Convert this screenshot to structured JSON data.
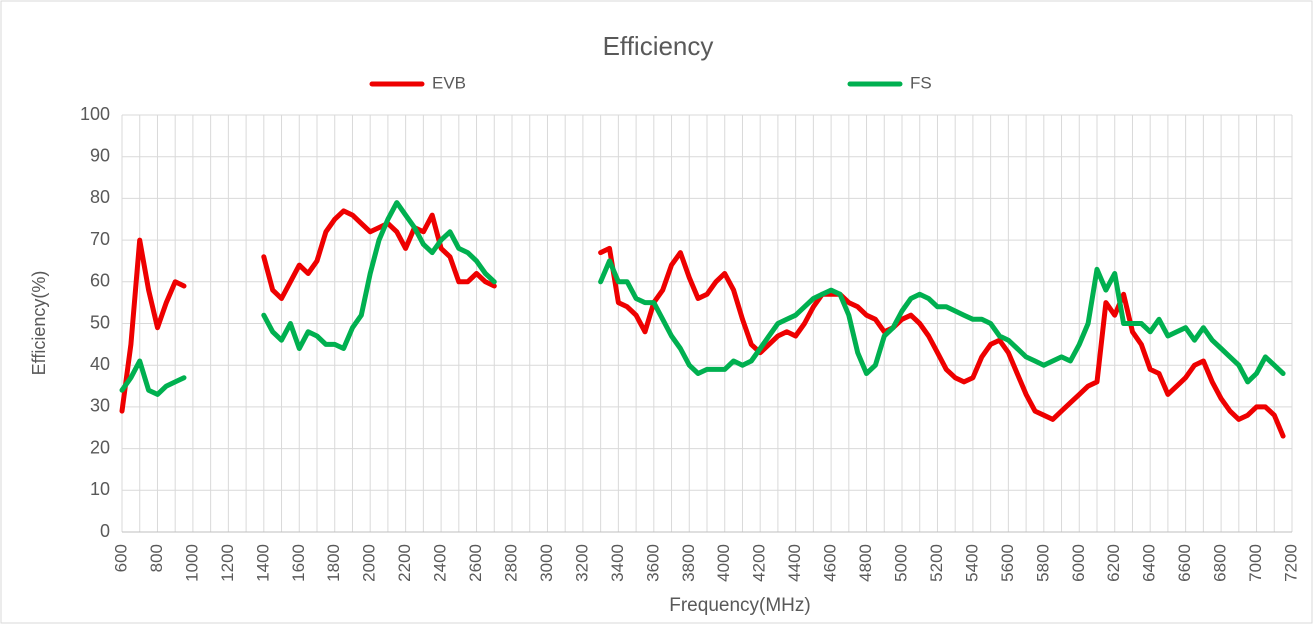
{
  "chart_data": {
    "type": "line",
    "title": "Efficiency",
    "x_label": "Frequency(MHz)",
    "y_label": "Efficiency(%)",
    "legend": "top",
    "grid": true,
    "xlim": [
      600,
      7200
    ],
    "xticks": [
      600,
      800,
      1000,
      1200,
      1400,
      1600,
      1800,
      2000,
      2200,
      2400,
      2600,
      2800,
      3000,
      3200,
      3400,
      3600,
      3800,
      4000,
      4200,
      4400,
      4600,
      4800,
      5000,
      5200,
      5400,
      5600,
      5800,
      6000,
      6200,
      6400,
      6600,
      6800,
      7000,
      7200
    ],
    "ylim": [
      0,
      100
    ],
    "yticks": [
      0,
      10,
      20,
      30,
      40,
      50,
      60,
      70,
      80,
      90,
      100
    ],
    "x": [
      600,
      650,
      700,
      750,
      800,
      850,
      900,
      950,
      1200,
      1400,
      1450,
      1500,
      1550,
      1600,
      1650,
      1700,
      1750,
      1800,
      1850,
      1900,
      1950,
      2000,
      2050,
      2100,
      2150,
      2200,
      2250,
      2300,
      2350,
      2400,
      2450,
      2500,
      2550,
      2600,
      2650,
      2700,
      3000,
      3300,
      3350,
      3400,
      3450,
      3500,
      3550,
      3600,
      3650,
      3700,
      3750,
      3800,
      3850,
      3900,
      3950,
      4000,
      4050,
      4100,
      4150,
      4200,
      4250,
      4300,
      4350,
      4400,
      4450,
      4500,
      4550,
      4600,
      4650,
      4700,
      4750,
      4800,
      4850,
      4900,
      4950,
      5000,
      5050,
      5100,
      5150,
      5200,
      5250,
      5300,
      5350,
      5400,
      5450,
      5500,
      5550,
      5600,
      5650,
      5700,
      5750,
      5800,
      5850,
      5900,
      5950,
      6000,
      6050,
      6100,
      6150,
      6200,
      6250,
      6300,
      6350,
      6400,
      6450,
      6500,
      6550,
      6600,
      6650,
      6700,
      6750,
      6800,
      6850,
      6900,
      6950,
      7000,
      7050,
      7100,
      7150
    ],
    "series": [
      {
        "name": "EVB",
        "color": "#ee0000",
        "values": [
          29,
          45,
          70,
          58,
          49,
          55,
          60,
          59,
          null,
          66,
          58,
          56,
          60,
          64,
          62,
          65,
          72,
          75,
          77,
          76,
          74,
          72,
          73,
          74,
          72,
          68,
          73,
          72,
          76,
          68,
          66,
          60,
          60,
          62,
          60,
          59,
          null,
          67,
          68,
          55,
          54,
          52,
          48,
          55,
          58,
          64,
          67,
          61,
          56,
          57,
          60,
          62,
          58,
          51,
          45,
          43,
          45,
          47,
          48,
          47,
          50,
          54,
          57,
          57,
          57,
          55,
          54,
          52,
          51,
          48,
          49,
          51,
          52,
          50,
          47,
          43,
          39,
          37,
          36,
          37,
          42,
          45,
          46,
          43,
          38,
          33,
          29,
          28,
          27,
          29,
          31,
          33,
          35,
          36,
          55,
          52,
          57,
          48,
          45,
          39,
          38,
          33,
          35,
          37,
          40,
          41,
          36,
          32,
          29,
          27,
          28,
          30,
          30,
          28,
          23
        ]
      },
      {
        "name": "FS",
        "color": "#00b050",
        "values": [
          34,
          37,
          41,
          34,
          33,
          35,
          36,
          37,
          null,
          52,
          48,
          46,
          50,
          44,
          48,
          47,
          45,
          45,
          44,
          49,
          52,
          62,
          70,
          75,
          79,
          76,
          73,
          69,
          67,
          70,
          72,
          68,
          67,
          65,
          62,
          60,
          null,
          60,
          65,
          60,
          60,
          56,
          55,
          55,
          51,
          47,
          44,
          40,
          38,
          39,
          39,
          39,
          41,
          40,
          41,
          44,
          47,
          50,
          51,
          52,
          54,
          56,
          57,
          58,
          57,
          52,
          43,
          38,
          40,
          47,
          49,
          53,
          56,
          57,
          56,
          54,
          54,
          53,
          52,
          51,
          51,
          50,
          47,
          46,
          44,
          42,
          41,
          40,
          41,
          42,
          41,
          45,
          50,
          63,
          58,
          62,
          50,
          50,
          50,
          48,
          51,
          47,
          48,
          49,
          46,
          49,
          46,
          44,
          42,
          40,
          36,
          38,
          42,
          40,
          38
        ]
      }
    ]
  }
}
